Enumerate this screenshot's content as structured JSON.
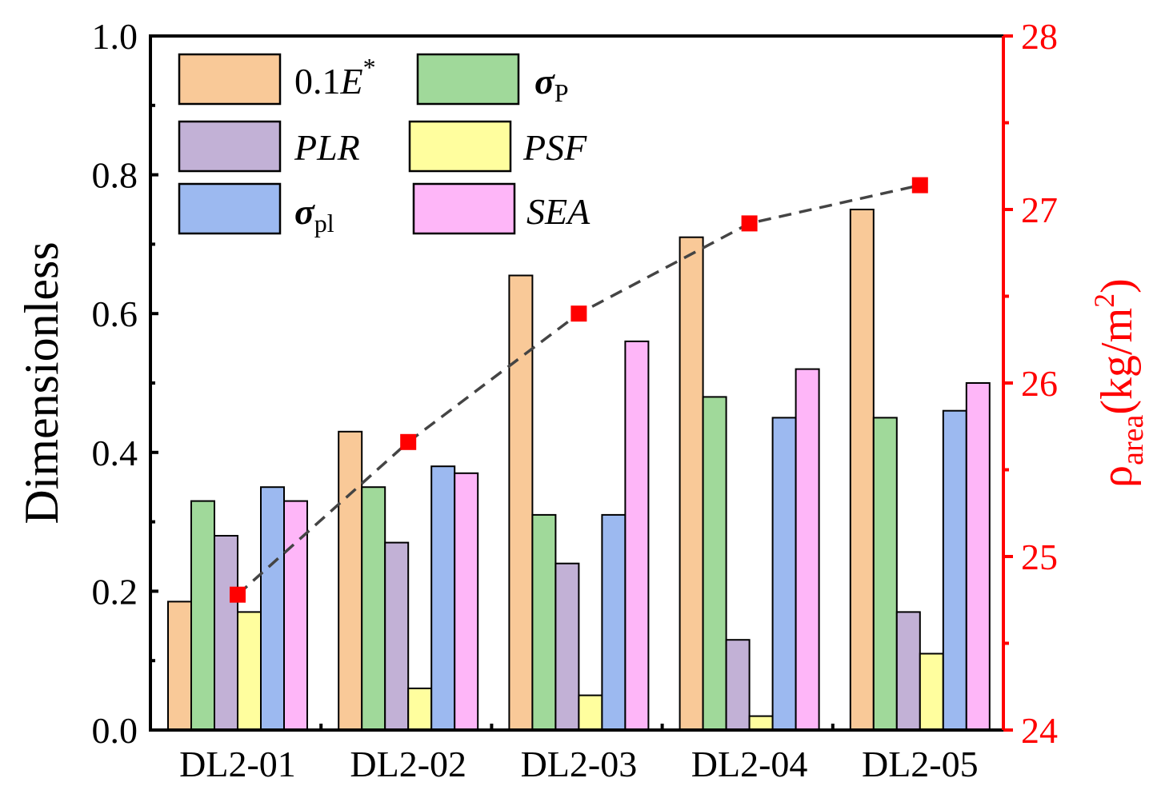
{
  "chart_data": {
    "type": "bar",
    "categories": [
      "DL2-01",
      "DL2-02",
      "DL2-03",
      "DL2-04",
      "DL2-05"
    ],
    "series": [
      {
        "name": "0.1E*",
        "label_main": "0.1",
        "label_italic": "E",
        "label_sup": "*",
        "color": "#f9c998",
        "values": [
          0.185,
          0.43,
          0.655,
          0.71,
          0.75
        ]
      },
      {
        "name": "σP",
        "label_main": "σ",
        "label_sub": "P",
        "color": "#a0d99a",
        "values": [
          0.33,
          0.35,
          0.31,
          0.48,
          0.45
        ]
      },
      {
        "name": "PLR",
        "label_italic": "PLR",
        "color": "#c2b1d6",
        "values": [
          0.28,
          0.27,
          0.24,
          0.13,
          0.17
        ]
      },
      {
        "name": "PSF",
        "label_italic": "PSF",
        "color": "#fffe9e",
        "values": [
          0.17,
          0.06,
          0.05,
          0.02,
          0.11
        ]
      },
      {
        "name": "σpl",
        "label_main": "σ",
        "label_sub": "pl",
        "color": "#9cb9f0",
        "values": [
          0.35,
          0.38,
          0.31,
          0.45,
          0.46
        ]
      },
      {
        "name": "SEA",
        "label_italic": "SEA",
        "color": "#feb6f8",
        "values": [
          0.33,
          0.37,
          0.56,
          0.52,
          0.5
        ]
      }
    ],
    "secondary_series": {
      "name": "ρarea",
      "color": "#ff0000",
      "line_color": "#444444",
      "values": [
        24.78,
        25.66,
        26.4,
        26.92,
        27.14
      ]
    },
    "ylabel": "Dimensionless",
    "ylim": [
      0,
      1.0
    ],
    "yticks": [
      "0.0",
      "0.2",
      "0.4",
      "0.6",
      "0.8",
      "1.0"
    ],
    "y2label_main": "ρ",
    "y2label_sub": "area",
    "y2label_unit": "(kg/m",
    "y2label_unit_sup": "2",
    "y2label_close": ")",
    "y2lim": [
      24,
      28
    ],
    "y2ticks": [
      "24",
      "25",
      "26",
      "27",
      "28"
    ],
    "legend_position": "top-left"
  }
}
